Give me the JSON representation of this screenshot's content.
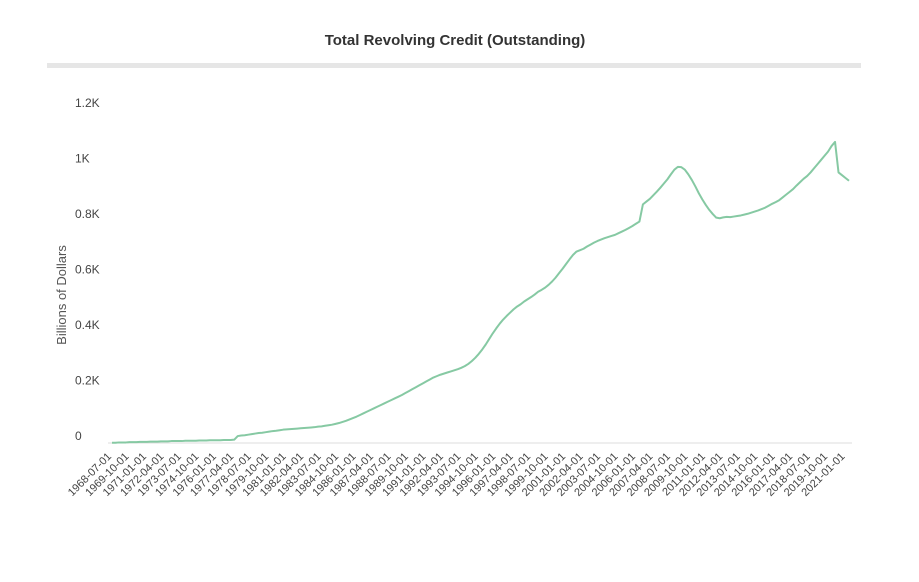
{
  "chart_data": {
    "type": "line",
    "title": "Total Revolving Credit (Outstanding)",
    "ylabel": "Billions of Dollars",
    "color": "#86c9a3",
    "grid": false,
    "ylim": [
      0,
      1200
    ],
    "yticks": [
      0,
      {
        "value": 200,
        "label": "0.2K"
      },
      {
        "value": 400,
        "label": "0.4K"
      },
      {
        "value": 600,
        "label": "0.6K"
      },
      {
        "value": 800,
        "label": "0.8K"
      },
      {
        "value": 1000,
        "label": "1K"
      },
      {
        "value": 1200,
        "label": "1.2K"
      }
    ],
    "categories": [
      "1968-07-01",
      null,
      null,
      null,
      null,
      "1969-10-01",
      null,
      null,
      null,
      null,
      "1971-01-01",
      null,
      null,
      null,
      null,
      "1972-04-01",
      null,
      null,
      null,
      null,
      "1973-07-01",
      null,
      null,
      null,
      null,
      "1974-10-01",
      null,
      null,
      null,
      null,
      "1976-01-01",
      null,
      null,
      null,
      null,
      "1977-04-01",
      null,
      null,
      null,
      null,
      "1978-07-01",
      null,
      null,
      null,
      null,
      "1979-10-01",
      null,
      null,
      null,
      null,
      "1981-01-01",
      null,
      null,
      null,
      null,
      "1982-04-01",
      null,
      null,
      null,
      null,
      "1983-07-01",
      null,
      null,
      null,
      null,
      "1984-10-01",
      null,
      null,
      null,
      null,
      "1986-01-01",
      null,
      null,
      null,
      null,
      "1987-04-01",
      null,
      null,
      null,
      null,
      "1988-07-01",
      null,
      null,
      null,
      null,
      "1989-10-01",
      null,
      null,
      null,
      null,
      "1991-01-01",
      null,
      null,
      null,
      null,
      "1992-04-01",
      null,
      null,
      null,
      null,
      "1993-07-01",
      null,
      null,
      null,
      null,
      "1994-10-01",
      null,
      null,
      null,
      null,
      "1996-01-01",
      null,
      null,
      null,
      null,
      "1997-04-01",
      null,
      null,
      null,
      null,
      "1998-07-01",
      null,
      null,
      null,
      null,
      "1999-10-01",
      null,
      null,
      null,
      null,
      "2001-01-01",
      null,
      null,
      null,
      null,
      "2002-04-01",
      null,
      null,
      null,
      null,
      "2003-07-01",
      null,
      null,
      null,
      null,
      "2004-10-01",
      null,
      null,
      null,
      null,
      "2006-01-01",
      null,
      null,
      null,
      null,
      "2007-04-01",
      null,
      null,
      null,
      null,
      "2008-07-01",
      null,
      null,
      null,
      null,
      "2009-10-01",
      null,
      null,
      null,
      null,
      "2011-01-01",
      null,
      null,
      null,
      null,
      "2012-04-01",
      null,
      null,
      null,
      null,
      "2013-07-01",
      null,
      null,
      null,
      null,
      "2014-10-01",
      null,
      null,
      null,
      null,
      "2016-01-01",
      null,
      null,
      null,
      null,
      "2017-04-01",
      null,
      null,
      null,
      null,
      "2018-07-01",
      null,
      null,
      null,
      null,
      "2019-10-01",
      null,
      null,
      null,
      null,
      "2021-01-01",
      null
    ],
    "values": [
      1,
      1,
      2,
      2,
      2,
      3,
      3,
      3,
      4,
      4,
      4,
      5,
      5,
      5,
      6,
      6,
      6,
      7,
      7,
      7,
      7,
      8,
      8,
      8,
      8,
      9,
      9,
      9,
      10,
      10,
      10,
      10,
      11,
      11,
      11,
      12,
      25,
      27,
      28,
      30,
      32,
      34,
      36,
      37,
      39,
      41,
      43,
      44,
      46,
      48,
      49,
      50,
      51,
      52,
      53,
      54,
      55,
      56,
      57,
      59,
      60,
      62,
      64,
      66,
      69,
      72,
      76,
      80,
      85,
      90,
      95,
      101,
      107,
      113,
      119,
      125,
      131,
      137,
      143,
      149,
      155,
      161,
      167,
      173,
      180,
      187,
      194,
      201,
      208,
      215,
      222,
      229,
      236,
      241,
      246,
      250,
      254,
      258,
      262,
      266,
      271,
      277,
      285,
      295,
      307,
      321,
      337,
      355,
      375,
      395,
      413,
      430,
      445,
      458,
      470,
      482,
      492,
      500,
      510,
      518,
      526,
      535,
      545,
      552,
      560,
      570,
      582,
      596,
      612,
      628,
      645,
      662,
      678,
      690,
      695,
      700,
      708,
      715,
      722,
      728,
      733,
      738,
      742,
      746,
      750,
      756,
      762,
      768,
      775,
      782,
      790,
      798,
      860,
      870,
      880,
      893,
      906,
      920,
      935,
      950,
      968,
      985,
      995,
      994,
      985,
      968,
      948,
      925,
      900,
      878,
      858,
      840,
      825,
      812,
      810,
      813,
      815,
      814,
      816,
      818,
      820,
      823,
      826,
      830,
      834,
      838,
      843,
      848,
      855,
      862,
      868,
      875,
      885,
      895,
      905,
      915,
      928,
      940,
      952,
      962,
      975,
      990,
      1005,
      1020,
      1035,
      1050,
      1070,
      1085,
      975,
      965,
      955,
      945
    ]
  }
}
